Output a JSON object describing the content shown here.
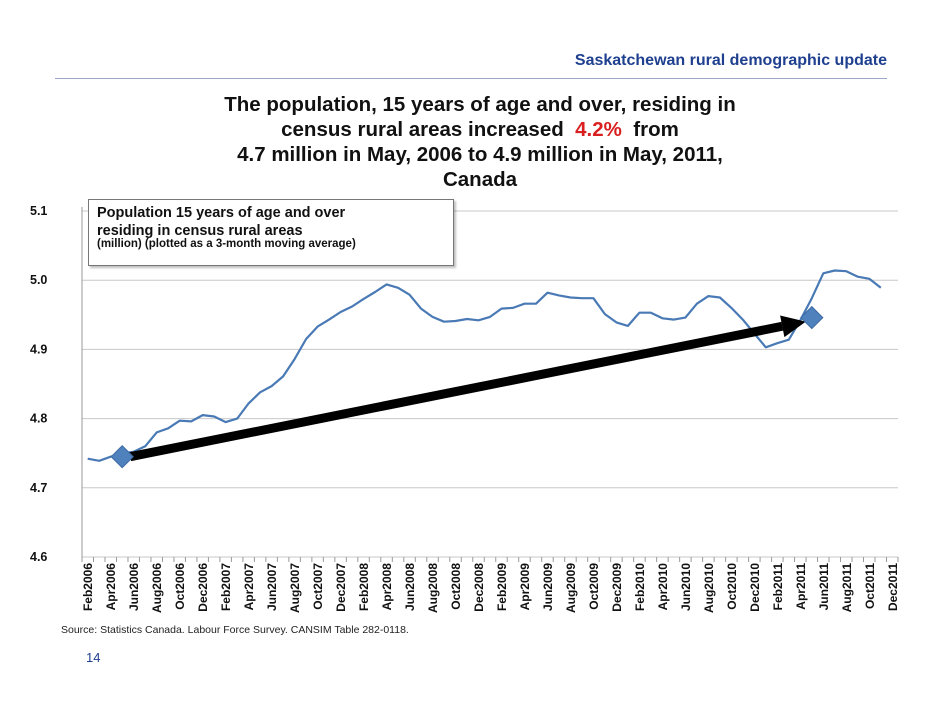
{
  "header": {
    "title": "Saskatchewan rural demographic update"
  },
  "headline": {
    "line1": "The population, 15 years of age and over, residing in",
    "line2_pre": "census rural areas increased",
    "line2_pct": "4.2%",
    "line2_post": "from",
    "line3": "4.7 million in May, 2006 to 4.9 million in May, 2011,",
    "line4": "Canada"
  },
  "legend": {
    "line1": "Population 15 years of age and over",
    "line2": "residing in census rural areas",
    "line3": "(million) (plotted as a 3-month moving average)"
  },
  "footer": {
    "source": "Source: Statistics Canada. Labour Force Survey. CANSIM Table 282-0118.",
    "page_number": "14"
  },
  "colors": {
    "header": "#1f3f8f",
    "series": "#4a7ab5",
    "marker": "#4f81bd",
    "highlight": "#d91f1f",
    "arrow": "#000000",
    "grid": "#c8c8c8"
  },
  "chart_data": {
    "type": "line",
    "x_labels_shown": [
      "Feb2006",
      "Apr2006",
      "Jun2006",
      "Aug2006",
      "Oct2006",
      "Dec2006",
      "Feb2007",
      "Apr2007",
      "Jun2007",
      "Aug2007",
      "Oct2007",
      "Dec2007",
      "Feb2008",
      "Apr2008",
      "Jun2008",
      "Aug2008",
      "Oct2008",
      "Dec2008",
      "Feb2009",
      "Apr2009",
      "Jun2009",
      "Aug2009",
      "Oct2009",
      "Dec2009",
      "Feb2010",
      "Apr2010",
      "Jun2010",
      "Aug2010",
      "Oct2010",
      "Dec2010",
      "Feb2011",
      "Apr2011",
      "Jun2011",
      "Aug2011",
      "Oct2011",
      "Dec2011"
    ],
    "x_start": "Feb2006",
    "x_end": "Dec2011",
    "values": [
      4.742,
      4.739,
      4.745,
      4.75,
      4.752,
      4.76,
      4.78,
      4.786,
      4.797,
      4.796,
      4.805,
      4.803,
      4.795,
      4.8,
      4.822,
      4.838,
      4.847,
      4.861,
      4.886,
      4.915,
      4.933,
      4.943,
      4.954,
      4.962,
      4.973,
      4.983,
      4.994,
      4.989,
      4.979,
      4.959,
      4.947,
      4.94,
      4.941,
      4.944,
      4.942,
      4.947,
      4.959,
      4.96,
      4.966,
      4.966,
      4.982,
      4.978,
      4.975,
      4.974,
      4.974,
      4.951,
      4.939,
      4.934,
      4.953,
      4.953,
      4.945,
      4.943,
      4.946,
      4.966,
      4.977,
      4.975,
      4.96,
      4.943,
      4.923,
      4.903,
      4.909,
      4.914,
      4.942,
      4.974,
      5.01,
      5.014,
      5.013,
      5.005,
      5.002,
      4.989
    ],
    "ylim": [
      4.6,
      5.1
    ],
    "yticks": [
      "4.6",
      "4.7",
      "4.8",
      "4.9",
      "5.0",
      "5.1"
    ],
    "grid": true,
    "highlight_points": [
      {
        "x": "May2006",
        "y": 4.745
      },
      {
        "x": "May2011",
        "y": 4.946
      }
    ],
    "trend_arrow": {
      "from": "May2006",
      "to": "May2011"
    }
  }
}
